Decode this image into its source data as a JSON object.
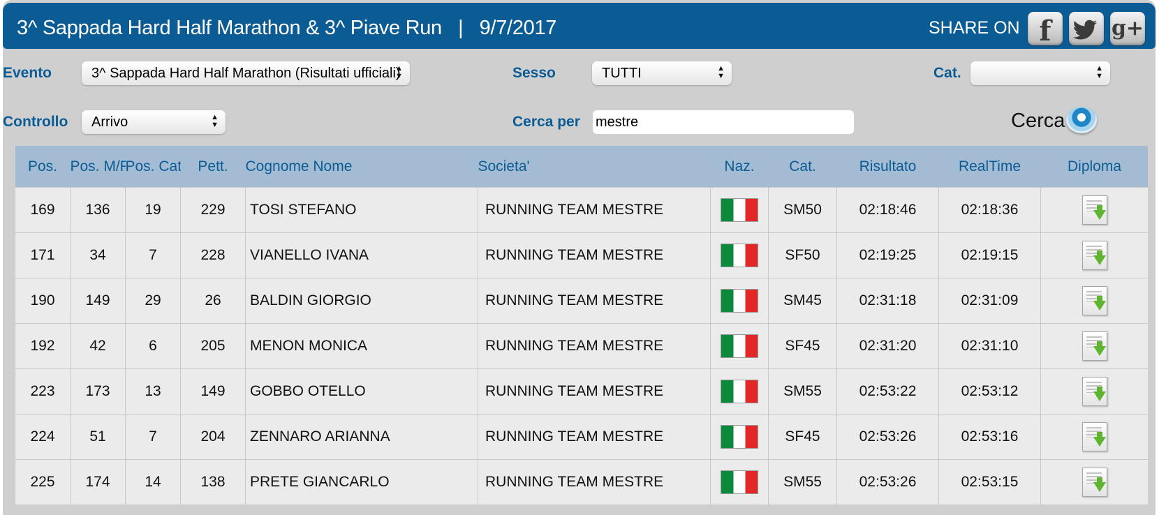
{
  "header": {
    "title": "3^ Sappada Hard Half Marathon & 3^ Piave Run   |   9/7/2017",
    "share_label": "SHARE ON",
    "share_buttons": [
      {
        "name": "facebook",
        "glyph": "f"
      },
      {
        "name": "twitter",
        "glyph": "twitter-bird"
      },
      {
        "name": "google-plus",
        "glyph": "g+"
      }
    ],
    "bg_color": "#0b5c95"
  },
  "filters": {
    "evento_label": "Evento",
    "evento_value": "3^ Sappada Hard Half Marathon (Risultati ufficiali)",
    "sesso_label": "Sesso",
    "sesso_value": "TUTTI",
    "cat_label": "Cat.",
    "cat_value": "",
    "controllo_label": "Controllo",
    "controllo_value": "Arrivo",
    "cerca_per_label": "Cerca per",
    "cerca_per_value": "mestre",
    "cerca_button": "Cerca"
  },
  "table": {
    "columns": [
      "Pos.",
      "Pos. M/F",
      "Pos. Cat.",
      "Pett.",
      "Cognome Nome",
      "Societa'",
      "Naz.",
      "Cat.",
      "Risultato",
      "RealTime",
      "Diploma"
    ],
    "rows": [
      {
        "pos": "169",
        "pos_mf": "136",
        "pos_cat": "19",
        "pett": "229",
        "nome": "TOSI STEFANO",
        "societa": "RUNNING TEAM MESTRE",
        "naz": "italy-flag",
        "cat": "SM50",
        "risultato": "02:18:46",
        "realtime": "02:18:36"
      },
      {
        "pos": "171",
        "pos_mf": "34",
        "pos_cat": "7",
        "pett": "228",
        "nome": "VIANELLO IVANA",
        "societa": "RUNNING TEAM MESTRE",
        "naz": "italy-flag",
        "cat": "SF50",
        "risultato": "02:19:25",
        "realtime": "02:19:15"
      },
      {
        "pos": "190",
        "pos_mf": "149",
        "pos_cat": "29",
        "pett": "26",
        "nome": "BALDIN GIORGIO",
        "societa": "RUNNING TEAM MESTRE",
        "naz": "italy-flag",
        "cat": "SM45",
        "risultato": "02:31:18",
        "realtime": "02:31:09"
      },
      {
        "pos": "192",
        "pos_mf": "42",
        "pos_cat": "6",
        "pett": "205",
        "nome": "MENON MONICA",
        "societa": "RUNNING TEAM MESTRE",
        "naz": "italy-flag",
        "cat": "SF45",
        "risultato": "02:31:20",
        "realtime": "02:31:10"
      },
      {
        "pos": "223",
        "pos_mf": "173",
        "pos_cat": "13",
        "pett": "149",
        "nome": "GOBBO OTELLO",
        "societa": "RUNNING TEAM MESTRE",
        "naz": "italy-flag",
        "cat": "SM55",
        "risultato": "02:53:22",
        "realtime": "02:53:12"
      },
      {
        "pos": "224",
        "pos_mf": "51",
        "pos_cat": "7",
        "pett": "204",
        "nome": "ZENNARO ARIANNA",
        "societa": "RUNNING TEAM MESTRE",
        "naz": "italy-flag",
        "cat": "SF45",
        "risultato": "02:53:26",
        "realtime": "02:53:16"
      },
      {
        "pos": "225",
        "pos_mf": "174",
        "pos_cat": "14",
        "pett": "138",
        "nome": "PRETE GIANCARLO",
        "societa": "RUNNING TEAM MESTRE",
        "naz": "italy-flag",
        "cat": "SM55",
        "risultato": "02:53:26",
        "realtime": "02:53:15"
      }
    ]
  },
  "colors": {
    "accent": "#0b5c95",
    "table_header": "#a3bcd4",
    "row_bg": "#ebebeb",
    "page_bg": "#cfcfcf"
  }
}
